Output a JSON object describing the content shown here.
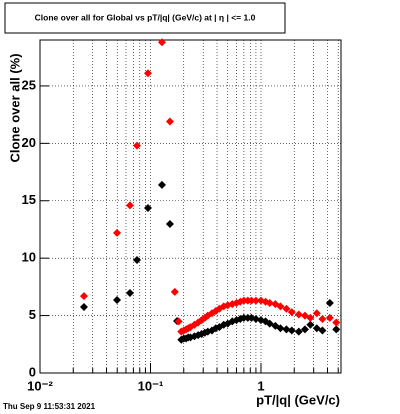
{
  "chart_data": {
    "type": "scatter",
    "title": "Clone  over all for Global vs pT/|q| (GeV/c) at |  η  | <= 1.0",
    "y_label": "Clone  over all (%)",
    "x_label": "pT/|q| (GeV/c)",
    "footer": "Thu Sep  9 11:53:31 2021",
    "log_x": true,
    "grid": true,
    "xlim": [
      0.01,
      5.3
    ],
    "ylim": [
      0,
      29
    ],
    "xticks": [
      {
        "value": 0.01,
        "label": "10⁻²"
      },
      {
        "value": 0.1,
        "label": "10⁻¹"
      },
      1
    ],
    "xgrid_minor": [
      0.02,
      0.03,
      0.04,
      0.05,
      0.06,
      0.07,
      0.08,
      0.09,
      0.2,
      0.3,
      0.4,
      0.5,
      0.6,
      0.7,
      0.8,
      0.9,
      2,
      3,
      4,
      5
    ],
    "yticks": [
      0,
      5,
      10,
      15,
      20,
      25
    ],
    "series": [
      {
        "color": "#000000",
        "x": [
          0.025,
          0.0498,
          0.0652,
          0.0755,
          0.0949,
          0.127,
          0.15,
          0.174,
          0.19,
          0.2,
          0.21,
          0.22,
          0.23,
          0.25,
          0.27,
          0.29,
          0.31,
          0.33,
          0.36,
          0.39,
          0.42,
          0.46,
          0.5,
          0.55,
          0.6,
          0.65,
          0.7,
          0.76,
          0.82,
          0.9,
          1.0,
          1.1,
          1.2,
          1.35,
          1.5,
          1.7,
          1.9,
          2.2,
          2.5,
          2.8,
          3.2,
          3.6,
          4.2,
          4.8
        ],
        "values": [
          5.75,
          6.36,
          6.97,
          9.84,
          14.37,
          16.38,
          12.98,
          4.53,
          2.9,
          3.0,
          3.0,
          3.1,
          3.1,
          3.2,
          3.3,
          3.4,
          3.5,
          3.6,
          3.7,
          3.9,
          4.0,
          4.2,
          4.3,
          4.5,
          4.6,
          4.7,
          4.8,
          4.8,
          4.8,
          4.7,
          4.6,
          4.5,
          4.3,
          4.1,
          3.9,
          3.8,
          3.7,
          3.6,
          3.8,
          4.2,
          3.9,
          3.7,
          6.1,
          3.8
        ]
      },
      {
        "color": "#ff0000",
        "x": [
          0.025,
          0.0498,
          0.0652,
          0.0755,
          0.0949,
          0.127,
          0.15,
          0.166,
          0.18,
          0.19,
          0.2,
          0.21,
          0.22,
          0.23,
          0.25,
          0.27,
          0.29,
          0.31,
          0.33,
          0.36,
          0.39,
          0.42,
          0.46,
          0.5,
          0.55,
          0.6,
          0.65,
          0.7,
          0.76,
          0.82,
          0.9,
          1.0,
          1.1,
          1.2,
          1.35,
          1.5,
          1.7,
          1.9,
          2.2,
          2.5,
          2.8,
          3.2,
          3.6,
          4.2,
          4.8
        ],
        "values": [
          6.7,
          12.2,
          14.6,
          19.8,
          26.1,
          28.8,
          21.9,
          7.06,
          4.5,
          3.6,
          3.7,
          3.8,
          3.9,
          4.0,
          4.2,
          4.4,
          4.6,
          4.8,
          5.0,
          5.2,
          5.4,
          5.6,
          5.8,
          5.9,
          6.0,
          6.1,
          6.2,
          6.3,
          6.3,
          6.3,
          6.3,
          6.3,
          6.2,
          6.1,
          6.0,
          5.8,
          5.6,
          5.3,
          5.1,
          5.0,
          4.8,
          5.2,
          4.7,
          4.8,
          4.4
        ]
      }
    ]
  }
}
